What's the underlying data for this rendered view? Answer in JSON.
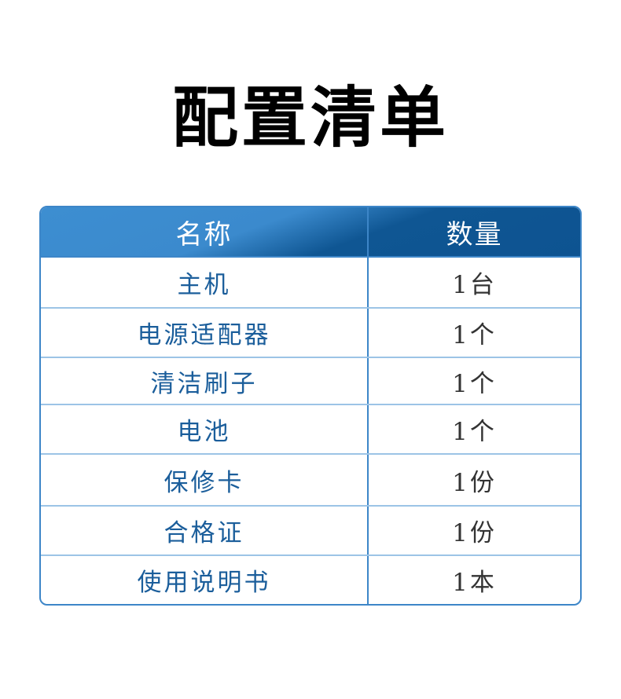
{
  "title": "配置清单",
  "table": {
    "headers": [
      "名称",
      "数量"
    ],
    "rows": [
      {
        "name": "主机",
        "qty": "1台"
      },
      {
        "name": "电源适配器",
        "qty": "1个"
      },
      {
        "name": "清洁刷子",
        "qty": "1个"
      },
      {
        "name": "电池",
        "qty": "1个"
      },
      {
        "name": "保修卡",
        "qty": "1份"
      },
      {
        "name": "合格证",
        "qty": "1份"
      },
      {
        "name": "使用说明书",
        "qty": "1本"
      }
    ]
  },
  "colors": {
    "header_light": "#3d8ed1",
    "header_dark": "#0d5391",
    "name_text": "#1b5e9b",
    "border": "#3d86c8"
  }
}
